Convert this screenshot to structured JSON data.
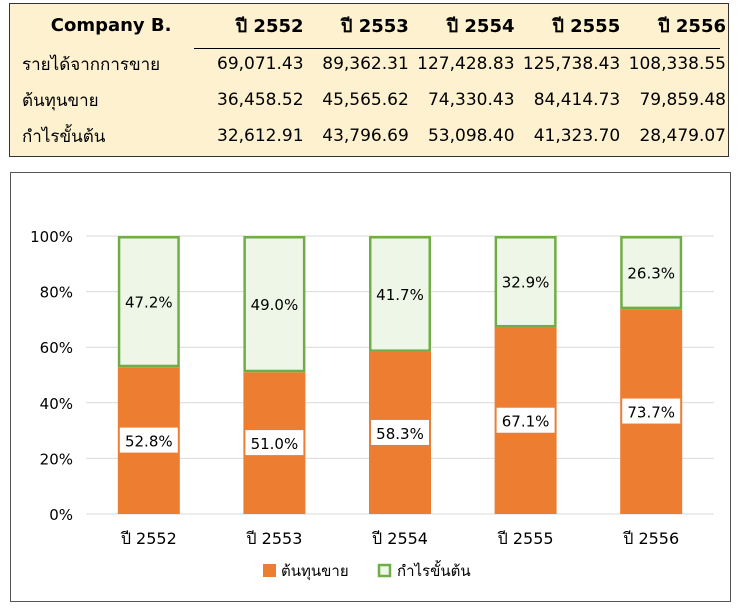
{
  "table": {
    "company_label": "Company B.",
    "years": [
      "ปี 2552",
      "ปี 2553",
      "ปี 2554",
      "ปี 2555",
      "ปี 2556"
    ],
    "rows": [
      {
        "label": "รายได้จากการขาย",
        "values": [
          "69,071.43",
          "89,362.31",
          "127,428.83",
          "125,738.43",
          "108,338.55"
        ]
      },
      {
        "label": "ต้นทุนขาย",
        "values": [
          "36,458.52",
          "45,565.62",
          "74,330.43",
          "84,414.73",
          "79,859.48"
        ]
      },
      {
        "label": "กำไรขั้นต้น",
        "values": [
          "32,612.91",
          "43,796.69",
          "53,098.40",
          "41,323.70",
          "28,479.07"
        ]
      }
    ]
  },
  "chart_data": {
    "type": "bar",
    "stacked": true,
    "percent": true,
    "categories": [
      "ปี 2552",
      "ปี 2553",
      "ปี 2554",
      "ปี 2555",
      "ปี 2556"
    ],
    "series": [
      {
        "name": "ต้นทุนขาย",
        "values": [
          52.8,
          51.0,
          58.3,
          67.1,
          73.7
        ],
        "labels": [
          "52.8%",
          "51.0%",
          "58.3%",
          "67.1%",
          "73.7%"
        ],
        "color": "#ed7d31"
      },
      {
        "name": "กำไรขั้นต้น",
        "values": [
          47.2,
          49.0,
          41.7,
          32.9,
          26.3
        ],
        "labels": [
          "47.2%",
          "49.0%",
          "41.7%",
          "32.9%",
          "26.3%"
        ],
        "color": "#eef6e8",
        "stroke": "#70ad47"
      }
    ],
    "ylim": [
      0,
      100
    ],
    "yticks": [
      0,
      20,
      40,
      60,
      80,
      100
    ],
    "ytick_labels": [
      "0%",
      "20%",
      "40%",
      "60%",
      "80%",
      "100%"
    ],
    "grid": true,
    "legend": "bottom",
    "gridline_color": "#d9d9d9"
  }
}
